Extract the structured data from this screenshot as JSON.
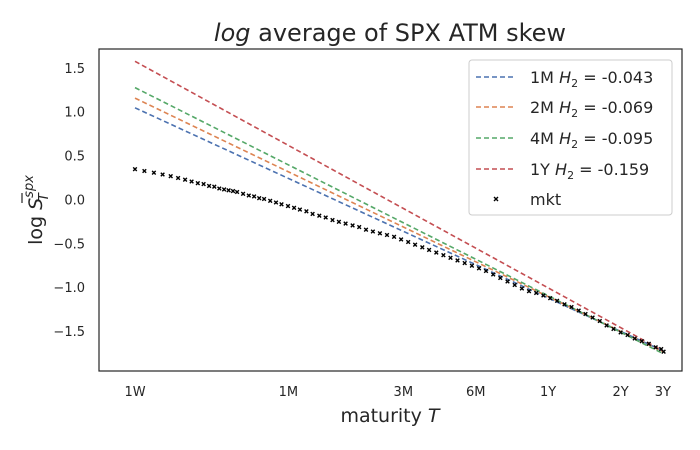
{
  "chart_data": {
    "type": "line",
    "title_prefix": "log",
    "title_rest": " average of SPX ATM skew",
    "xlabel_text": "maturity ",
    "xlabel_var": "T",
    "ylabel_text": "log ",
    "ylabel_var": "S",
    "ylabel_sup": "spx",
    "ylabel_sub": "T",
    "x_scale": "log",
    "x_unit": "years",
    "xlim": [
      0.0136,
      3.6
    ],
    "ylim": [
      -1.95,
      1.72
    ],
    "x_ticks": [
      {
        "label": "1W",
        "value": 0.0192
      },
      {
        "label": "1M",
        "value": 0.0833
      },
      {
        "label": "3M",
        "value": 0.25
      },
      {
        "label": "6M",
        "value": 0.5
      },
      {
        "label": "1Y",
        "value": 1.0
      },
      {
        "label": "2Y",
        "value": 2.0
      },
      {
        "label": "3Y",
        "value": 3.0
      }
    ],
    "y_ticks": [
      {
        "label": "1.5",
        "value": 1.5
      },
      {
        "label": "1.0",
        "value": 1.0
      },
      {
        "label": "0.5",
        "value": 0.5
      },
      {
        "label": "0.0",
        "value": 0.0
      },
      {
        "label": "−0.5",
        "value": -0.5
      },
      {
        "label": "−1.0",
        "value": -1.0
      },
      {
        "label": "−1.5",
        "value": -1.5
      }
    ],
    "grid": false,
    "legend_position": "top-right",
    "series": [
      {
        "name": "1M",
        "h_label": "H",
        "h_sub": "2",
        "h_value": " = -0.043",
        "style": "dashed",
        "color": "#4c72b0",
        "x": [
          0.0192,
          3.0
        ],
        "y": [
          1.05,
          -1.72
        ]
      },
      {
        "name": "2M",
        "h_label": "H",
        "h_sub": "2",
        "h_value": " = -0.069",
        "style": "dashed",
        "color": "#dd8452",
        "x": [
          0.0192,
          3.0
        ],
        "y": [
          1.16,
          -1.73
        ]
      },
      {
        "name": "4M",
        "h_label": "H",
        "h_sub": "2",
        "h_value": " = -0.095",
        "style": "dashed",
        "color": "#55a868",
        "x": [
          0.0192,
          3.0
        ],
        "y": [
          1.28,
          -1.75
        ]
      },
      {
        "name": "1Y",
        "h_label": "H",
        "h_sub": "2",
        "h_value": " = -0.159",
        "style": "dashed",
        "color": "#c44e52",
        "x": [
          0.0192,
          3.0
        ],
        "y": [
          1.58,
          -1.72
        ]
      }
    ],
    "scatter": {
      "name": "mkt",
      "color": "#000000",
      "x": [
        0.0192,
        0.021,
        0.023,
        0.025,
        0.027,
        0.029,
        0.031,
        0.033,
        0.035,
        0.037,
        0.039,
        0.041,
        0.043,
        0.045,
        0.047,
        0.049,
        0.051,
        0.054,
        0.057,
        0.06,
        0.063,
        0.066,
        0.07,
        0.074,
        0.078,
        0.083,
        0.088,
        0.093,
        0.099,
        0.105,
        0.112,
        0.119,
        0.127,
        0.135,
        0.144,
        0.154,
        0.164,
        0.175,
        0.187,
        0.2,
        0.214,
        0.229,
        0.245,
        0.262,
        0.28,
        0.3,
        0.32,
        0.343,
        0.367,
        0.393,
        0.42,
        0.45,
        0.482,
        0.516,
        0.552,
        0.591,
        0.633,
        0.678,
        0.726,
        0.778,
        0.833,
        0.892,
        0.956,
        1.02,
        1.09,
        1.17,
        1.25,
        1.34,
        1.43,
        1.53,
        1.64,
        1.75,
        1.87,
        2.0,
        2.14,
        2.29,
        2.45,
        2.62,
        2.8,
        2.95,
        3.02
      ],
      "y": [
        0.35,
        0.33,
        0.31,
        0.29,
        0.27,
        0.25,
        0.23,
        0.21,
        0.19,
        0.18,
        0.16,
        0.15,
        0.13,
        0.12,
        0.11,
        0.1,
        0.09,
        0.07,
        0.05,
        0.04,
        0.02,
        0.01,
        -0.01,
        -0.03,
        -0.05,
        -0.07,
        -0.09,
        -0.11,
        -0.13,
        -0.16,
        -0.18,
        -0.2,
        -0.23,
        -0.25,
        -0.27,
        -0.29,
        -0.31,
        -0.34,
        -0.36,
        -0.38,
        -0.4,
        -0.42,
        -0.45,
        -0.48,
        -0.51,
        -0.54,
        -0.57,
        -0.6,
        -0.63,
        -0.66,
        -0.69,
        -0.72,
        -0.75,
        -0.78,
        -0.81,
        -0.85,
        -0.89,
        -0.93,
        -0.97,
        -1.01,
        -1.04,
        -1.06,
        -1.09,
        -1.12,
        -1.15,
        -1.19,
        -1.22,
        -1.26,
        -1.3,
        -1.34,
        -1.38,
        -1.43,
        -1.47,
        -1.51,
        -1.54,
        -1.58,
        -1.61,
        -1.64,
        -1.68,
        -1.7,
        -1.73
      ]
    }
  }
}
